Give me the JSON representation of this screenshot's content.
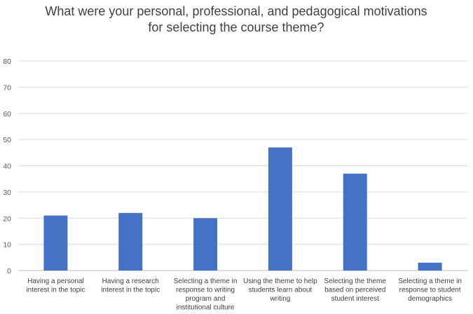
{
  "chart_data": {
    "type": "bar",
    "title_lines": [
      "What were your personal, professional, and pedagogical motivations",
      "for selecting the course theme?"
    ],
    "categories": [
      [
        "Having a personal",
        "interest in the topic"
      ],
      [
        "Having a research",
        "interest in the topic"
      ],
      [
        "Selecting a theme in",
        "response to writing",
        "program and",
        "institutional culture"
      ],
      [
        "Using the theme to help",
        "students learn about",
        "writing"
      ],
      [
        "Selecting the theme",
        "based on perceived",
        "student interest"
      ],
      [
        "Selecting a theme in",
        "response to student",
        "demographics"
      ]
    ],
    "values": [
      21,
      22,
      20,
      47,
      37,
      3
    ],
    "ylim": [
      0,
      80
    ],
    "yticks": [
      0,
      10,
      20,
      30,
      40,
      50,
      60,
      70,
      80
    ],
    "grid": true,
    "bar_color": "#4472C4"
  }
}
